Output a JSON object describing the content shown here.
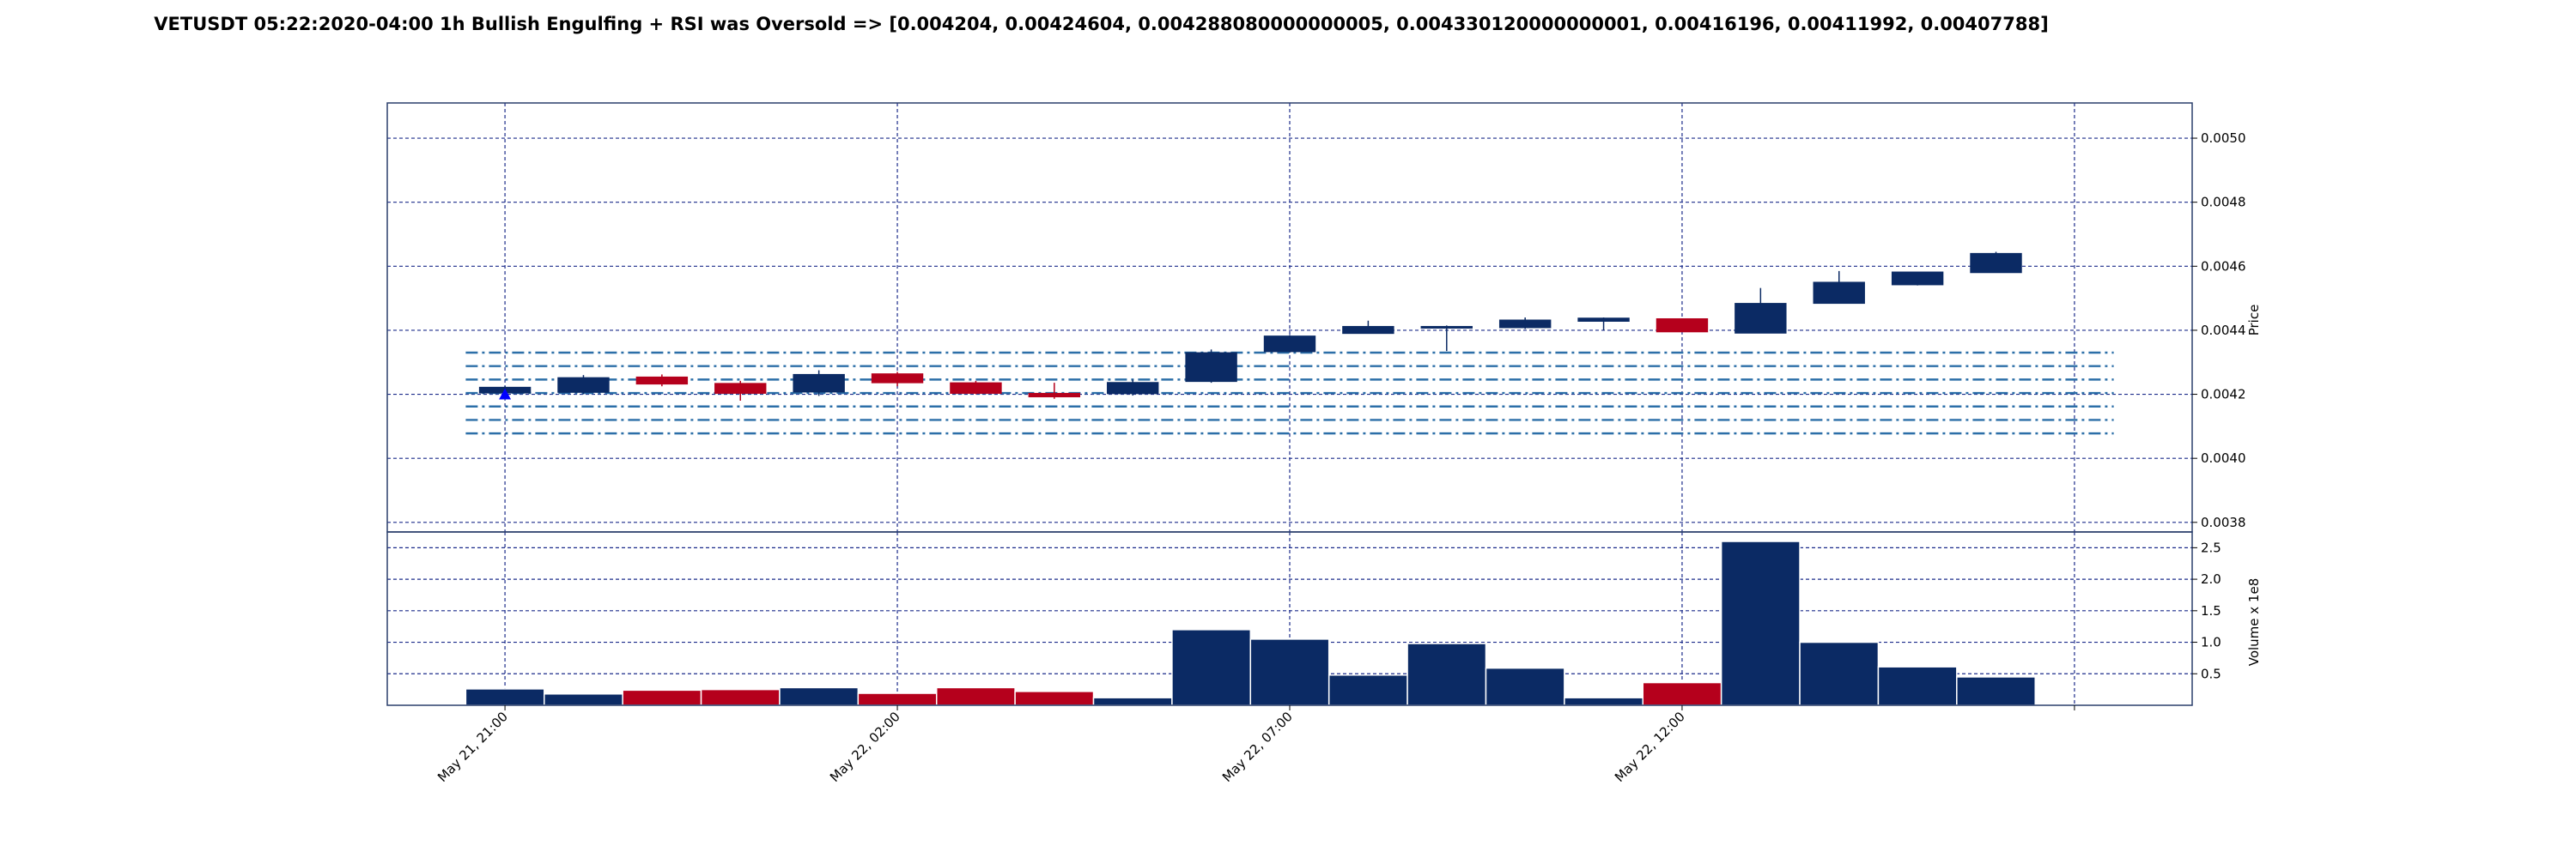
{
  "chart_data": {
    "type": "candlestick",
    "title": "VETUSDT 05:22:2020-04:00 1h Bullish Engulfing + RSI was Oversold => [0.004204, 0.00424604, 0.004288080000000005, 0.004330120000000001, 0.00416196, 0.00411992, 0.00407788]",
    "price_axis": {
      "label": "Price",
      "range": [
        0.00377,
        0.00511
      ],
      "ticks": [
        0.0038,
        0.004,
        0.0042,
        0.0044,
        0.0046,
        0.0048,
        0.005
      ],
      "tick_labels": [
        "0.0038",
        "0.0040",
        "0.0042",
        "0.0044",
        "0.0046",
        "0.0048",
        "0.0050"
      ],
      "position": "right"
    },
    "volume_axis": {
      "label": "Volume x 1e8",
      "range": [
        0,
        2.75
      ],
      "ticks": [
        0.5,
        1.0,
        1.5,
        2.0,
        2.5
      ],
      "tick_labels": [
        "0.5",
        "1.0",
        "1.5",
        "2.0",
        "2.5"
      ],
      "position": "right"
    },
    "x_axis": {
      "range": [
        -1.5,
        21.5
      ],
      "ticks": [
        0,
        5,
        10,
        15,
        20
      ],
      "tick_labels": [
        "May 21, 21:00",
        "May 22, 02:00",
        "May 22, 07:00",
        "May 22, 12:00",
        ""
      ]
    },
    "grid": true,
    "colors": {
      "up": "#0b2a64",
      "down": "#b5001c",
      "levels": "#2c6fa8",
      "grid": "#1b2b8a",
      "marker": "#0000ff"
    },
    "candles": [
      {
        "o": 0.004204,
        "h": 0.004226,
        "l": 0.0042,
        "c": 0.004222
      },
      {
        "o": 0.004206,
        "h": 0.00426,
        "l": 0.0042,
        "c": 0.004252
      },
      {
        "o": 0.004254,
        "h": 0.004262,
        "l": 0.004225,
        "c": 0.004232
      },
      {
        "o": 0.004234,
        "h": 0.004242,
        "l": 0.00418,
        "c": 0.004203
      },
      {
        "o": 0.004207,
        "h": 0.004275,
        "l": 0.004195,
        "c": 0.004262
      },
      {
        "o": 0.004264,
        "h": 0.00427,
        "l": 0.004225,
        "c": 0.004236
      },
      {
        "o": 0.004236,
        "h": 0.004242,
        "l": 0.0042,
        "c": 0.004203
      },
      {
        "o": 0.004203,
        "h": 0.004236,
        "l": 0.004186,
        "c": 0.004192
      },
      {
        "o": 0.004202,
        "h": 0.004246,
        "l": 0.004196,
        "c": 0.004237
      },
      {
        "o": 0.00424,
        "h": 0.00434,
        "l": 0.004236,
        "c": 0.00433
      },
      {
        "o": 0.004333,
        "h": 0.004385,
        "l": 0.00433,
        "c": 0.004382
      },
      {
        "o": 0.00439,
        "h": 0.00443,
        "l": 0.00439,
        "c": 0.004412
      },
      {
        "o": 0.004409,
        "h": 0.004415,
        "l": 0.004335,
        "c": 0.004412
      },
      {
        "o": 0.004408,
        "h": 0.00444,
        "l": 0.004404,
        "c": 0.004432
      },
      {
        "o": 0.004428,
        "h": 0.00444,
        "l": 0.0044,
        "c": 0.004438
      },
      {
        "o": 0.004436,
        "h": 0.004436,
        "l": 0.004395,
        "c": 0.004395
      },
      {
        "o": 0.004391,
        "h": 0.004532,
        "l": 0.004391,
        "c": 0.004484
      },
      {
        "o": 0.004484,
        "h": 0.004585,
        "l": 0.004484,
        "c": 0.00455
      },
      {
        "o": 0.004542,
        "h": 0.004582,
        "l": 0.00454,
        "c": 0.004582
      },
      {
        "o": 0.00458,
        "h": 0.004645,
        "l": 0.00458,
        "c": 0.00464
      }
    ],
    "volumes": [
      0.26,
      0.18,
      0.24,
      0.25,
      0.28,
      0.19,
      0.28,
      0.22,
      0.12,
      1.2,
      1.05,
      0.48,
      0.98,
      0.59,
      0.12,
      0.36,
      2.6,
      1.0,
      0.61,
      0.45
    ],
    "volume_colors": [
      "up",
      "up",
      "down",
      "down",
      "up",
      "down",
      "down",
      "down",
      "up",
      "up",
      "up",
      "up",
      "up",
      "up",
      "up",
      "down",
      "up",
      "up",
      "up",
      "up"
    ],
    "levels": [
      0.004204,
      0.00424604,
      0.004288080000000005,
      0.004330120000000001,
      0.00416196,
      0.00411992,
      0.00407788
    ],
    "signal_marker": {
      "index": 0,
      "price": 0.0042
    }
  }
}
